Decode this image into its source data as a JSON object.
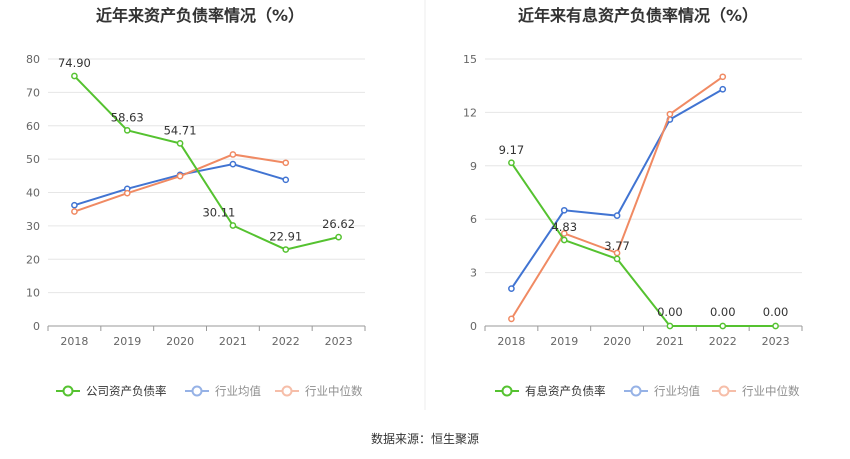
{
  "source_text": "数据来源：恒生聚源",
  "colors": {
    "green": "#55c230",
    "blue": "#4174d2",
    "orange": "#f08a63",
    "grid": "#e6e6e6",
    "axis": "#999999"
  },
  "chart_data": [
    {
      "type": "line",
      "title": "近年来资产负债率情况（%）",
      "categories": [
        "2018",
        "2019",
        "2020",
        "2021",
        "2022",
        "2023"
      ],
      "ylim": [
        0,
        80
      ],
      "yticks": [
        0,
        10,
        20,
        30,
        40,
        50,
        60,
        70,
        80
      ],
      "grid": true,
      "legend_position": "bottom",
      "series": [
        {
          "name": "公司资产负债率",
          "color": "#55c230",
          "values": [
            74.9,
            58.63,
            54.71,
            30.11,
            22.91,
            26.62
          ],
          "labels": [
            "74.90",
            "58.63",
            "54.71",
            "30.11",
            "22.91",
            "26.62"
          ]
        },
        {
          "name": "行业均值",
          "color": "#4174d2",
          "values": [
            36.2,
            41.1,
            45.3,
            48.5,
            43.8,
            null
          ]
        },
        {
          "name": "行业中位数",
          "color": "#f08a63",
          "values": [
            34.3,
            39.8,
            44.9,
            51.4,
            48.9,
            null
          ]
        }
      ]
    },
    {
      "type": "line",
      "title": "近年来有息资产负债率情况（%）",
      "categories": [
        "2018",
        "2019",
        "2020",
        "2021",
        "2022",
        "2023"
      ],
      "ylim": [
        0,
        15
      ],
      "yticks": [
        0,
        3,
        6,
        9,
        12,
        15
      ],
      "grid": true,
      "legend_position": "bottom",
      "series": [
        {
          "name": "有息资产负债率",
          "color": "#55c230",
          "values": [
            9.17,
            4.83,
            3.77,
            0.0,
            0.0,
            0.0
          ],
          "labels": [
            "9.17",
            "4.83",
            "3.77",
            "0.00",
            "0.00",
            "0.00"
          ]
        },
        {
          "name": "行业均值",
          "color": "#4174d2",
          "values": [
            2.1,
            6.5,
            6.2,
            11.6,
            13.3,
            null
          ]
        },
        {
          "name": "行业中位数",
          "color": "#f08a63",
          "values": [
            0.4,
            5.2,
            4.1,
            11.9,
            14.0,
            null
          ]
        }
      ]
    }
  ]
}
